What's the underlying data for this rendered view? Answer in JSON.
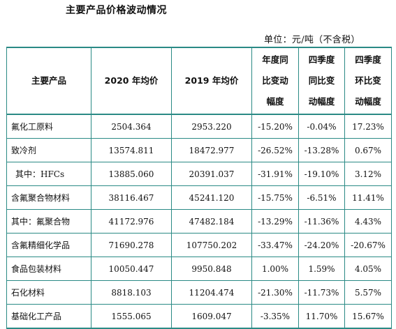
{
  "title": "主要产品价格波动情况",
  "unit": "单位：元/吨（不含税）",
  "columns": [
    "主要产品",
    "2020 年均价",
    "2019 年均价",
    "年度同比变动幅度",
    "四季度同比变动幅度",
    "四季度环比变动幅度"
  ],
  "rows": [
    {
      "product": "氟化工原料",
      "p2020": "2504.364",
      "p2019": "2953.220",
      "yoy": "-15.20%",
      "q4_yoy": "-0.04%",
      "q4_qoq": "17.23%"
    },
    {
      "product": "致冷剂",
      "p2020": "13574.811",
      "p2019": "18472.977",
      "yoy": "-26.52%",
      "q4_yoy": "-13.28%",
      "q4_qoq": "0.67%"
    },
    {
      "product": "其中：HFCs",
      "p2020": "13885.060",
      "p2019": "20391.037",
      "yoy": "-31.91%",
      "q4_yoy": "-19.10%",
      "q4_qoq": "3.12%"
    },
    {
      "product": "含氟聚合物材料",
      "p2020": "38116.467",
      "p2019": "45241.120",
      "yoy": "-15.75%",
      "q4_yoy": "-6.51%",
      "q4_qoq": "11.41%"
    },
    {
      "product": "其中：氟聚合物",
      "p2020": "41172.976",
      "p2019": "47482.184",
      "yoy": "-13.29%",
      "q4_yoy": "-11.36%",
      "q4_qoq": "4.43%"
    },
    {
      "product": "含氟精细化学品",
      "p2020": "71690.278",
      "p2019": "107750.202",
      "yoy": "-33.47%",
      "q4_yoy": "-24.20%",
      "q4_qoq": "-20.67%"
    },
    {
      "product": "食品包装材料",
      "p2020": "10050.447",
      "p2019": "9950.848",
      "yoy": "1.00%",
      "q4_yoy": "1.59%",
      "q4_qoq": "4.05%"
    },
    {
      "product": "石化材料",
      "p2020": "8818.103",
      "p2019": "11204.474",
      "yoy": "-21.30%",
      "q4_yoy": "-11.73%",
      "q4_qoq": "5.57%"
    },
    {
      "product": "基础化工产品",
      "p2020": "1555.065",
      "p2019": "1609.047",
      "yoy": "-3.35%",
      "q4_yoy": "11.70%",
      "q4_qoq": "15.67%"
    }
  ]
}
